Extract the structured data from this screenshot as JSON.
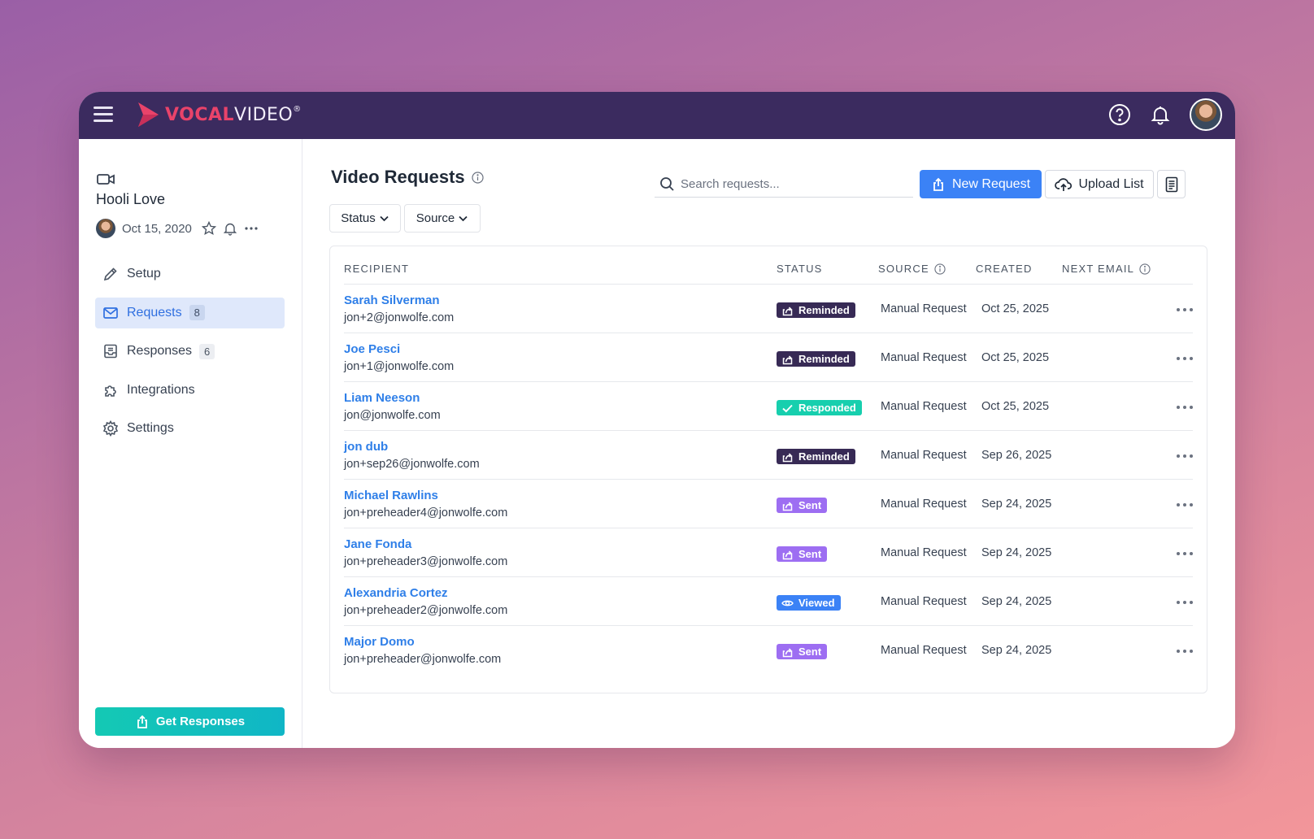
{
  "brand": {
    "name_part1": "VOCAL",
    "name_part2": "VIDEO",
    "trademark": "®"
  },
  "project": {
    "name": "Hooli Love",
    "date": "Oct 15, 2020"
  },
  "nav": [
    {
      "label": "Setup",
      "icon": "pencil-icon"
    },
    {
      "label": "Requests",
      "icon": "mail-icon",
      "count": "8",
      "active": true
    },
    {
      "label": "Responses",
      "icon": "inbox-icon",
      "count": "6"
    },
    {
      "label": "Integrations",
      "icon": "puzzle-icon"
    },
    {
      "label": "Settings",
      "icon": "gear-icon"
    }
  ],
  "sidebar": {
    "cta_label": "Get Responses"
  },
  "page": {
    "title": "Video Requests"
  },
  "search": {
    "placeholder": "Search requests..."
  },
  "actions": {
    "new_request": "New Request",
    "upload_list": "Upload List"
  },
  "filters": {
    "status": "Status",
    "source": "Source"
  },
  "table": {
    "headers": {
      "recipient": "RECIPIENT",
      "status": "STATUS",
      "source": "SOURCE",
      "created": "CREATED",
      "next_email": "NEXT EMAIL"
    },
    "rows": [
      {
        "name": "Sarah Silverman",
        "email": "jon+2@jonwolfe.com",
        "status": "Reminded",
        "source": "Manual Request",
        "created": "Oct 25, 2025"
      },
      {
        "name": "Joe Pesci",
        "email": "jon+1@jonwolfe.com",
        "status": "Reminded",
        "source": "Manual Request",
        "created": "Oct 25, 2025"
      },
      {
        "name": "Liam Neeson",
        "email": "jon@jonwolfe.com",
        "status": "Responded",
        "source": "Manual Request",
        "created": "Oct 25, 2025"
      },
      {
        "name": "jon dub",
        "email": "jon+sep26@jonwolfe.com",
        "status": "Reminded",
        "source": "Manual Request",
        "created": "Sep 26, 2025"
      },
      {
        "name": "Michael Rawlins",
        "email": "jon+preheader4@jonwolfe.com",
        "status": "Sent",
        "source": "Manual Request",
        "created": "Sep 24, 2025"
      },
      {
        "name": "Jane Fonda",
        "email": "jon+preheader3@jonwolfe.com",
        "status": "Sent",
        "source": "Manual Request",
        "created": "Sep 24, 2025"
      },
      {
        "name": "Alexandria Cortez",
        "email": "jon+preheader2@jonwolfe.com",
        "status": "Viewed",
        "source": "Manual Request",
        "created": "Sep 24, 2025"
      },
      {
        "name": "Major Domo",
        "email": "jon+preheader@jonwolfe.com",
        "status": "Sent",
        "source": "Manual Request",
        "created": "Sep 24, 2025"
      }
    ]
  },
  "colors": {
    "topbar": "#3b2b5f",
    "accent": "#3b82f6",
    "brand_red": "#e9436a",
    "teal": "#14c9b4",
    "reminded": "#372a55",
    "responded": "#17cfae",
    "sent": "#9d6ef2",
    "viewed": "#3b82f6"
  }
}
